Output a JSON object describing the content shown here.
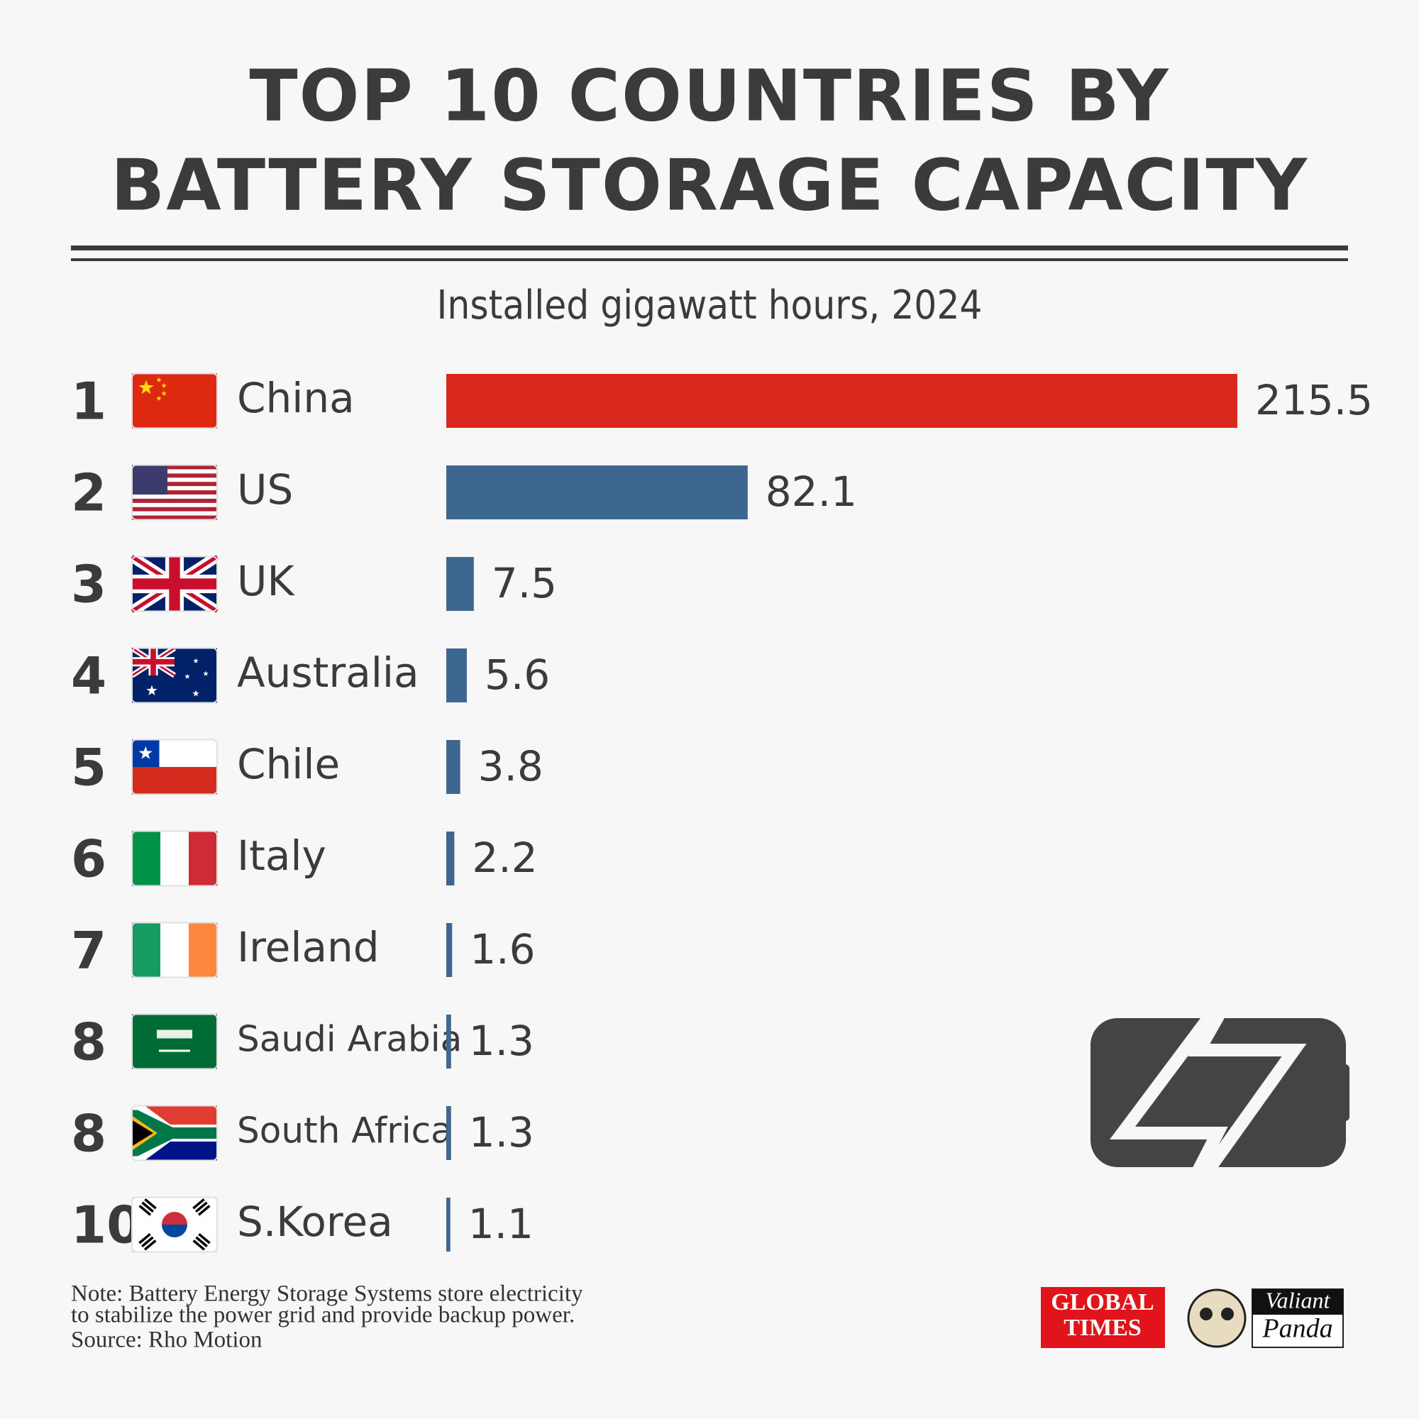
{
  "chart_data": {
    "type": "bar",
    "title": [
      "TOP 10 COUNTRIES BY",
      "BATTERY STORAGE CAPACITY"
    ],
    "subtitle": "Installed gigawatt hours, 2024",
    "ranks": [
      "1",
      "2",
      "3",
      "4",
      "5",
      "6",
      "7",
      "8",
      "8",
      "10"
    ],
    "categories": [
      "China",
      "US",
      "UK",
      "Australia",
      "Chile",
      "Italy",
      "Ireland",
      "Saudi Arabia",
      "South Africa",
      "S.Korea"
    ],
    "values": [
      215.5,
      82.1,
      7.5,
      5.6,
      3.8,
      2.2,
      1.6,
      1.3,
      1.3,
      1.1
    ],
    "colors": [
      "#d9291f",
      "#3d6690",
      "#3d6690",
      "#3d6690",
      "#3d6690",
      "#3d6690",
      "#3d6690",
      "#3d6690",
      "#3d6690",
      "#3d6690"
    ],
    "note": [
      "Note: Battery Energy Storage Systems store electricity",
      "to stabilize the power grid and provide backup power."
    ],
    "source": "Source: Rho Motion",
    "logos": {
      "global_times": [
        "GLOBAL",
        "TIMES"
      ],
      "valiant_panda": [
        "Valiant",
        "Panda"
      ]
    }
  }
}
